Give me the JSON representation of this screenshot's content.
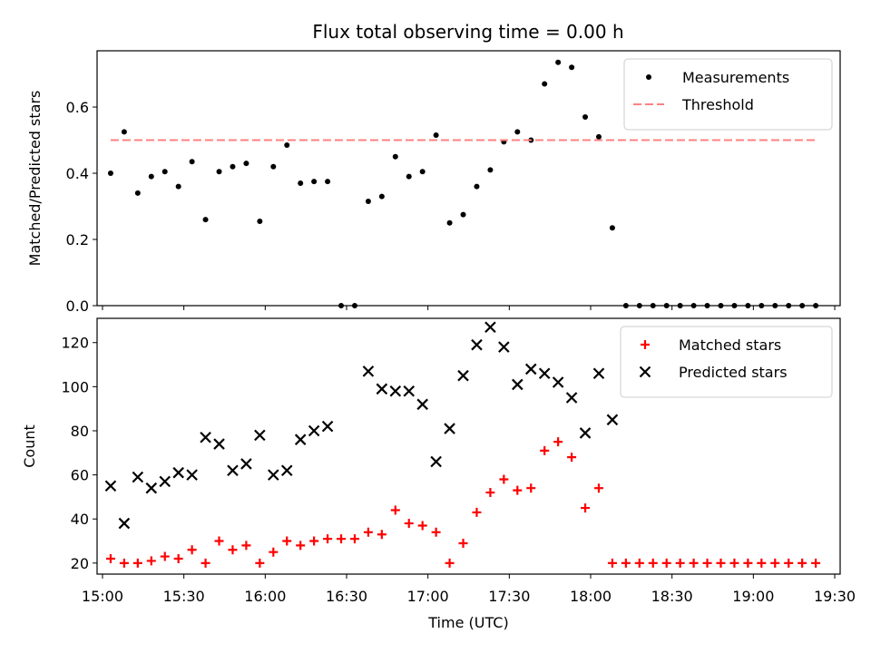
{
  "title": "Flux total observing time = 0.00 h",
  "chart_data": [
    {
      "type": "scatter",
      "ylabel": "Matched/Predicted stars",
      "ylim": [
        0,
        0.77
      ],
      "yticks": [
        0.0,
        0.2,
        0.4,
        0.6
      ],
      "ytick_labels": [
        "0.0",
        "0.2",
        "0.4",
        "0.6"
      ],
      "xlim": [
        "14:58",
        "19:32"
      ],
      "legend": "top-right",
      "series": [
        {
          "name": "Measurements",
          "color": "#000000",
          "marker": "dot",
          "points": [
            [
              "15:03",
              0.4
            ],
            [
              "15:08",
              0.525
            ],
            [
              "15:13",
              0.34
            ],
            [
              "15:18",
              0.39
            ],
            [
              "15:23",
              0.405
            ],
            [
              "15:28",
              0.36
            ],
            [
              "15:33",
              0.435
            ],
            [
              "15:38",
              0.26
            ],
            [
              "15:43",
              0.405
            ],
            [
              "15:48",
              0.42
            ],
            [
              "15:53",
              0.43
            ],
            [
              "15:58",
              0.255
            ],
            [
              "16:03",
              0.42
            ],
            [
              "16:08",
              0.485
            ],
            [
              "16:13",
              0.37
            ],
            [
              "16:18",
              0.375
            ],
            [
              "16:23",
              0.375
            ],
            [
              "16:28",
              0.0
            ],
            [
              "16:33",
              0.0
            ],
            [
              "16:38",
              0.315
            ],
            [
              "16:43",
              0.33
            ],
            [
              "16:48",
              0.45
            ],
            [
              "16:53",
              0.39
            ],
            [
              "16:58",
              0.405
            ],
            [
              "17:03",
              0.515
            ],
            [
              "17:08",
              0.25
            ],
            [
              "17:13",
              0.275
            ],
            [
              "17:18",
              0.36
            ],
            [
              "17:23",
              0.41
            ],
            [
              "17:28",
              0.495
            ],
            [
              "17:33",
              0.525
            ],
            [
              "17:38",
              0.5
            ],
            [
              "17:43",
              0.67
            ],
            [
              "17:48",
              0.735
            ],
            [
              "17:53",
              0.72
            ],
            [
              "17:58",
              0.57
            ],
            [
              "18:03",
              0.51
            ],
            [
              "18:08",
              0.235
            ],
            [
              "18:13",
              0.0
            ],
            [
              "18:18",
              0.0
            ],
            [
              "18:23",
              0.0
            ],
            [
              "18:28",
              0.0
            ],
            [
              "18:33",
              0.0
            ],
            [
              "18:38",
              0.0
            ],
            [
              "18:43",
              0.0
            ],
            [
              "18:48",
              0.0
            ],
            [
              "18:53",
              0.0
            ],
            [
              "18:58",
              0.0
            ],
            [
              "19:03",
              0.0
            ],
            [
              "19:08",
              0.0
            ],
            [
              "19:13",
              0.0
            ],
            [
              "19:18",
              0.0
            ],
            [
              "19:23",
              0.0
            ]
          ]
        },
        {
          "name": "Threshold",
          "color": "#ff8080",
          "style": "dashed-line",
          "points": [
            [
              "15:03",
              0.5
            ],
            [
              "19:23",
              0.5
            ]
          ]
        }
      ]
    },
    {
      "type": "scatter",
      "xlabel": "Time (UTC)",
      "ylabel": "Count",
      "ylim": [
        15,
        131
      ],
      "yticks": [
        20,
        40,
        60,
        80,
        100,
        120
      ],
      "ytick_labels": [
        "20",
        "40",
        "60",
        "80",
        "100",
        "120"
      ],
      "xlim": [
        "14:58",
        "19:32"
      ],
      "xticks": [
        "15:00",
        "15:30",
        "16:00",
        "16:30",
        "17:00",
        "17:30",
        "18:00",
        "18:30",
        "19:00",
        "19:30"
      ],
      "xtick_labels": [
        "15:00",
        "15:30",
        "16:00",
        "16:30",
        "17:00",
        "17:30",
        "18:00",
        "18:30",
        "19:00",
        "19:30"
      ],
      "legend": "top-right",
      "series": [
        {
          "name": "Matched stars",
          "color": "#ff0000",
          "marker": "plus",
          "points": [
            [
              "15:03",
              22
            ],
            [
              "15:08",
              20
            ],
            [
              "15:13",
              20
            ],
            [
              "15:18",
              21
            ],
            [
              "15:23",
              23
            ],
            [
              "15:28",
              22
            ],
            [
              "15:33",
              26
            ],
            [
              "15:38",
              20
            ],
            [
              "15:43",
              30
            ],
            [
              "15:48",
              26
            ],
            [
              "15:53",
              28
            ],
            [
              "15:58",
              20
            ],
            [
              "16:03",
              25
            ],
            [
              "16:08",
              30
            ],
            [
              "16:13",
              28
            ],
            [
              "16:18",
              30
            ],
            [
              "16:23",
              31
            ],
            [
              "16:28",
              31
            ],
            [
              "16:33",
              31
            ],
            [
              "16:38",
              34
            ],
            [
              "16:43",
              33
            ],
            [
              "16:48",
              44
            ],
            [
              "16:53",
              38
            ],
            [
              "16:58",
              37
            ],
            [
              "17:03",
              34
            ],
            [
              "17:08",
              20
            ],
            [
              "17:13",
              29
            ],
            [
              "17:18",
              43
            ],
            [
              "17:23",
              52
            ],
            [
              "17:28",
              58
            ],
            [
              "17:33",
              53
            ],
            [
              "17:38",
              54
            ],
            [
              "17:43",
              71
            ],
            [
              "17:48",
              75
            ],
            [
              "17:53",
              68
            ],
            [
              "17:58",
              45
            ],
            [
              "18:03",
              54
            ],
            [
              "18:08",
              20
            ],
            [
              "18:13",
              20
            ],
            [
              "18:18",
              20
            ],
            [
              "18:23",
              20
            ],
            [
              "18:28",
              20
            ],
            [
              "18:33",
              20
            ],
            [
              "18:38",
              20
            ],
            [
              "18:43",
              20
            ],
            [
              "18:48",
              20
            ],
            [
              "18:53",
              20
            ],
            [
              "18:58",
              20
            ],
            [
              "19:03",
              20
            ],
            [
              "19:08",
              20
            ],
            [
              "19:13",
              20
            ],
            [
              "19:18",
              20
            ],
            [
              "19:23",
              20
            ]
          ]
        },
        {
          "name": "Predicted stars",
          "color": "#000000",
          "marker": "x",
          "points": [
            [
              "15:03",
              55
            ],
            [
              "15:08",
              38
            ],
            [
              "15:13",
              59
            ],
            [
              "15:18",
              54
            ],
            [
              "15:23",
              57
            ],
            [
              "15:28",
              61
            ],
            [
              "15:33",
              60
            ],
            [
              "15:38",
              77
            ],
            [
              "15:43",
              74
            ],
            [
              "15:48",
              62
            ],
            [
              "15:53",
              65
            ],
            [
              "15:58",
              78
            ],
            [
              "16:03",
              60
            ],
            [
              "16:08",
              62
            ],
            [
              "16:13",
              76
            ],
            [
              "16:18",
              80
            ],
            [
              "16:23",
              82
            ],
            [
              "16:38",
              107
            ],
            [
              "16:43",
              99
            ],
            [
              "16:48",
              98
            ],
            [
              "16:53",
              98
            ],
            [
              "16:58",
              92
            ],
            [
              "17:03",
              66
            ],
            [
              "17:08",
              81
            ],
            [
              "17:13",
              105
            ],
            [
              "17:18",
              119
            ],
            [
              "17:23",
              127
            ],
            [
              "17:28",
              118
            ],
            [
              "17:33",
              101
            ],
            [
              "17:38",
              108
            ],
            [
              "17:43",
              106
            ],
            [
              "17:48",
              102
            ],
            [
              "17:53",
              95
            ],
            [
              "17:58",
              79
            ],
            [
              "18:03",
              106
            ],
            [
              "18:08",
              85
            ]
          ]
        }
      ]
    }
  ]
}
